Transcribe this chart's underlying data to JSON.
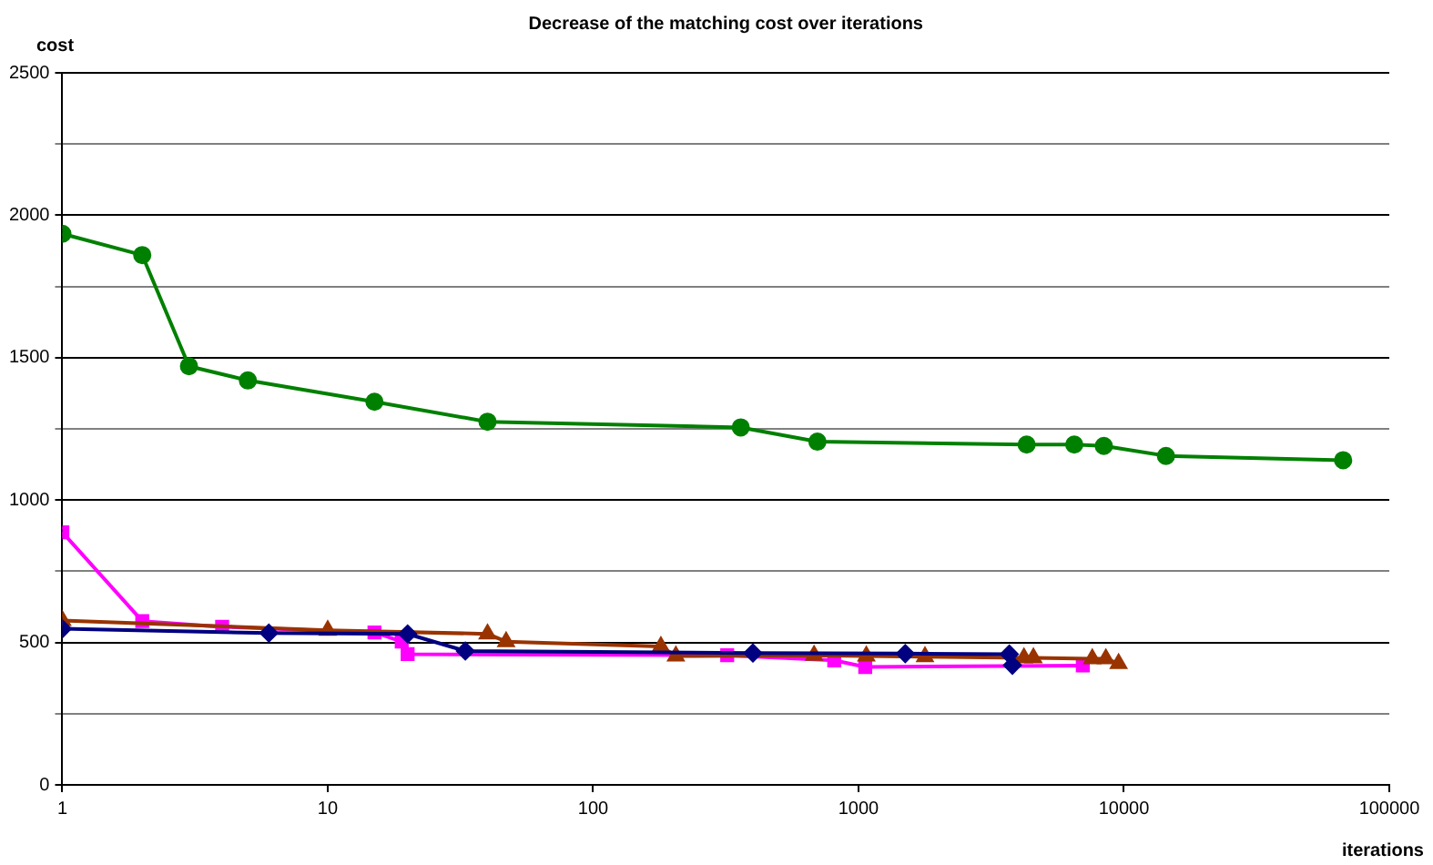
{
  "chart_data": {
    "type": "line",
    "title": "Decrease of the matching cost over iterations",
    "xlabel": "iterations",
    "ylabel": "cost",
    "log": "x",
    "grid": "y",
    "legend": false,
    "line_style": "solid",
    "xlim": [
      1,
      100000
    ],
    "xticks": [
      1,
      10,
      100,
      1000,
      10000,
      100000
    ],
    "ylim": [
      0,
      2500
    ],
    "yticks": [
      0,
      {
        "value": 250,
        "label": null
      },
      500,
      {
        "value": 750,
        "label": null
      },
      1000,
      {
        "value": 1250,
        "label": null
      },
      1500,
      {
        "value": 1750,
        "label": null
      },
      2000,
      {
        "value": 2250,
        "label": null
      },
      2500
    ],
    "series": [
      {
        "color": "#008000",
        "marker": "circle",
        "x": [
          1,
          2,
          3,
          5,
          15,
          40,
          360,
          700,
          4300,
          6500,
          8400,
          14400,
          67000
        ],
        "values": [
          1935,
          1860,
          1470,
          1420,
          1345,
          1275,
          1255,
          1205,
          1195,
          1195,
          1190,
          1155,
          1140
        ]
      },
      {
        "color": "#000080",
        "marker": "diamond",
        "x": [
          1,
          6,
          20,
          33,
          400,
          1500,
          3700,
          3800
        ],
        "values": [
          548,
          533,
          530,
          470,
          463,
          461,
          459,
          420
        ]
      },
      {
        "color": "#993300",
        "marker": "triangle",
        "x": [
          1,
          10,
          40,
          47,
          180,
          205,
          680,
          1070,
          1780,
          4200,
          4560,
          7600,
          8550,
          9550
        ],
        "values": [
          577,
          543,
          530,
          503,
          486,
          452,
          455,
          452,
          450,
          446,
          446,
          443,
          443,
          426
        ]
      },
      {
        "color": "#ff00ff",
        "marker": "square",
        "x": [
          1,
          2,
          4,
          15,
          19,
          20,
          320,
          810,
          1060,
          7000
        ],
        "values": [
          887,
          575,
          555,
          535,
          503,
          459,
          455,
          437,
          414,
          419
        ]
      }
    ]
  }
}
